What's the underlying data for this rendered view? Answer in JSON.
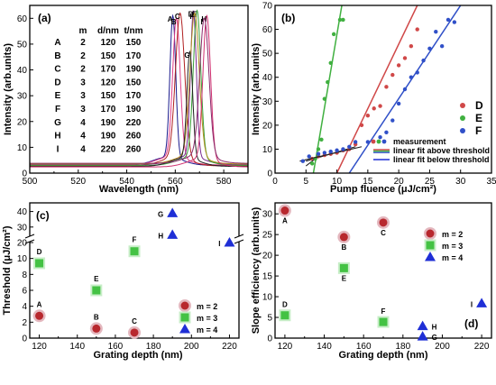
{
  "chart_data": [
    {
      "panel": "(a)",
      "type": "line",
      "xlabel": "Wavelength (nm)",
      "ylabel": "Intensity (arb.units)",
      "xlim": [
        500,
        590
      ],
      "ylim": [
        0,
        65
      ],
      "xticks": [
        500,
        520,
        540,
        560,
        580
      ],
      "yticks": [
        0,
        10,
        20,
        30,
        40,
        50,
        60
      ],
      "table": {
        "headers": [
          "m",
          "d/nm",
          "t/nm"
        ],
        "rows": [
          [
            "A",
            "2",
            "120",
            "150"
          ],
          [
            "B",
            "2",
            "150",
            "170"
          ],
          [
            "C",
            "2",
            "170",
            "190"
          ],
          [
            "D",
            "3",
            "120",
            "150"
          ],
          [
            "E",
            "3",
            "150",
            "170"
          ],
          [
            "F",
            "3",
            "170",
            "190"
          ],
          [
            "G",
            "4",
            "190",
            "220"
          ],
          [
            "H",
            "4",
            "190",
            "260"
          ],
          [
            "I",
            "4",
            "220",
            "260"
          ]
        ]
      },
      "series": [
        {
          "name": "A",
          "color": "#1a1a8c",
          "peak": 559.0,
          "height": 58,
          "base": 3.0
        },
        {
          "name": "B",
          "color": "#e0408a",
          "peak": 560.5,
          "height": 57,
          "base": 3.2
        },
        {
          "name": "C",
          "color": "#b02020",
          "peak": 562.0,
          "height": 59,
          "base": 2.8
        },
        {
          "name": "D",
          "color": "#7a2a90",
          "peak": 567.5,
          "height": 60,
          "base": 3.4
        },
        {
          "name": "E",
          "color": "#3aa03a",
          "peak": 569.0,
          "height": 60,
          "base": 3.0
        },
        {
          "name": "F",
          "color": "#b09020",
          "peak": 568.0,
          "height": 59,
          "base": 3.6
        },
        {
          "name": "G",
          "color": "#202020",
          "peak": 566.0,
          "height": 44,
          "base": 2.6
        },
        {
          "name": "H",
          "color": "#d03070",
          "peak": 573.0,
          "height": 58,
          "base": 2.4
        },
        {
          "name": "I",
          "color": "#8a2a6a",
          "peak": 572.0,
          "height": 57,
          "base": 3.8
        }
      ]
    },
    {
      "panel": "(b)",
      "type": "scatter",
      "xlabel": "Pump fluence (μJ/cm²)",
      "ylabel": "Intensity (arb.units)",
      "xlim": [
        0,
        35
      ],
      "ylim": [
        0,
        70
      ],
      "xticks": [
        0,
        5,
        10,
        15,
        20,
        25,
        30,
        35
      ],
      "yticks": [
        0,
        10,
        20,
        30,
        40,
        50,
        60,
        70
      ],
      "legend": {
        "series_labels": [
          "D",
          "E",
          "F"
        ],
        "labels": [
          "measurement",
          "linear fit above threshold",
          "linear fit below threshold"
        ]
      },
      "series": [
        {
          "name": "D",
          "color": "#d04848",
          "points": [
            [
              6,
              6
            ],
            [
              7,
              7
            ],
            [
              8,
              7.5
            ],
            [
              9,
              8
            ],
            [
              10,
              8.5
            ],
            [
              11,
              9.5
            ],
            [
              12,
              10
            ],
            [
              13,
              12
            ],
            [
              14,
              20
            ],
            [
              15,
              24
            ],
            [
              16,
              27
            ],
            [
              17,
              28
            ],
            [
              18,
              36
            ],
            [
              19,
              41
            ],
            [
              20,
              45
            ],
            [
              21,
              48
            ],
            [
              22,
              53
            ],
            [
              23,
              60
            ]
          ],
          "fit_above": [
            [
              10,
              0
            ],
            [
              23,
              70
            ]
          ],
          "fit_below": [
            [
              5,
              5
            ],
            [
              13,
              11
            ]
          ]
        },
        {
          "name": "E",
          "color": "#40b040",
          "points": [
            [
              6,
              4
            ],
            [
              6.5,
              6
            ],
            [
              7,
              10
            ],
            [
              7.5,
              14
            ],
            [
              8,
              31
            ],
            [
              8.5,
              38
            ],
            [
              9,
              46
            ],
            [
              9.5,
              58
            ],
            [
              10.5,
              64
            ],
            [
              11,
              64
            ]
          ],
          "fit_above": [
            [
              6.2,
              0
            ],
            [
              10.8,
              70
            ]
          ],
          "fit_below": [
            [
              5,
              3
            ],
            [
              7,
              7
            ]
          ]
        },
        {
          "name": "F",
          "color": "#3050c8",
          "points": [
            [
              4.5,
              5
            ],
            [
              5.5,
              7
            ],
            [
              7,
              8
            ],
            [
              8,
              8.5
            ],
            [
              9,
              9
            ],
            [
              10,
              9.5
            ],
            [
              11,
              10
            ],
            [
              12,
              11
            ],
            [
              13,
              13
            ],
            [
              15,
              13
            ],
            [
              17,
              15
            ],
            [
              18,
              17
            ],
            [
              19,
              22
            ],
            [
              20,
              29
            ],
            [
              21,
              35
            ],
            [
              22,
              40
            ],
            [
              23,
              42
            ],
            [
              24,
              47
            ],
            [
              25,
              52
            ],
            [
              26,
              59
            ],
            [
              27,
              53
            ],
            [
              28,
              64
            ],
            [
              29,
              63
            ]
          ],
          "fit_above": [
            [
              12,
              0
            ],
            [
              30,
              70
            ]
          ],
          "fit_below": [
            [
              4,
              5
            ],
            [
              14,
              11
            ]
          ]
        }
      ]
    },
    {
      "panel": "(c)",
      "type": "scatter",
      "xlabel": "Grating depth (nm)",
      "ylabel": "Threshold (μJ/cm²)",
      "xlim": [
        115,
        225
      ],
      "xticks": [
        120,
        140,
        160,
        180,
        200,
        220
      ],
      "yticks_lower": [
        0,
        2,
        4,
        6,
        8,
        10
      ],
      "yticks_upper": [
        20,
        30,
        40
      ],
      "legend": [
        "m = 2",
        "m = 3",
        "m = 4"
      ],
      "points": [
        {
          "label": "A",
          "m": 2,
          "x": 120,
          "y": 2.8
        },
        {
          "label": "B",
          "m": 2,
          "x": 150,
          "y": 1.2
        },
        {
          "label": "C",
          "m": 2,
          "x": 170,
          "y": 0.7
        },
        {
          "label": "D",
          "m": 3,
          "x": 120,
          "y": 9.4
        },
        {
          "label": "E",
          "m": 3,
          "x": 150,
          "y": 6.0
        },
        {
          "label": "F",
          "m": 3,
          "x": 170,
          "y": 10.9
        },
        {
          "label": "G",
          "m": 4,
          "x": 190,
          "y": 39
        },
        {
          "label": "H",
          "m": 4,
          "x": 190,
          "y": 25
        },
        {
          "label": "I",
          "m": 4,
          "x": 220,
          "y": 20
        }
      ]
    },
    {
      "panel": "(d)",
      "type": "scatter",
      "xlabel": "Grating depth (nm)",
      "ylabel": "Slope efficiency (arb.units)",
      "xlim": [
        115,
        225
      ],
      "ylim": [
        0,
        32
      ],
      "xticks": [
        120,
        140,
        160,
        180,
        200,
        220
      ],
      "yticks": [
        0,
        5,
        10,
        15,
        20,
        25,
        30
      ],
      "legend": [
        "m = 2",
        "m = 3",
        "m = 4"
      ],
      "points": [
        {
          "label": "A",
          "m": 2,
          "x": 120,
          "y": 30.8
        },
        {
          "label": "B",
          "m": 2,
          "x": 150,
          "y": 24.4
        },
        {
          "label": "C",
          "m": 2,
          "x": 170,
          "y": 27.9
        },
        {
          "label": "D",
          "m": 3,
          "x": 120,
          "y": 5.5
        },
        {
          "label": "E",
          "m": 3,
          "x": 150,
          "y": 16.9
        },
        {
          "label": "F",
          "m": 3,
          "x": 170,
          "y": 3.9
        },
        {
          "label": "G",
          "m": 4,
          "x": 190,
          "y": 0.4
        },
        {
          "label": "H",
          "m": 4,
          "x": 190,
          "y": 2.9
        },
        {
          "label": "I",
          "m": 4,
          "x": 220,
          "y": 8.4
        }
      ]
    }
  ],
  "marker_colors": {
    "m2": "#b8282e",
    "m3": "#44c244",
    "m4": "#1f2fd6"
  }
}
